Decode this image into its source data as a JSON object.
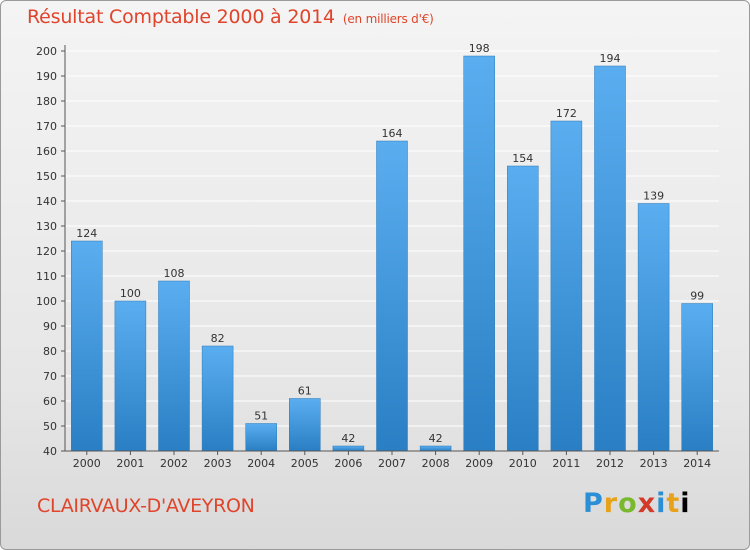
{
  "header": {
    "title": "Résultat Comptable 2000 à 2014",
    "unit": "(en milliers d'€)"
  },
  "footer": {
    "commune": "CLAIRVAUX-D'AVEYRON",
    "logo_letters": [
      "P",
      "r",
      "o",
      "x",
      "i",
      "t",
      "i"
    ]
  },
  "chart_data": {
    "type": "bar",
    "title": "Résultat Comptable 2000 à 2014",
    "subtitle": "(en milliers d'€)",
    "xlabel": "",
    "ylabel": "",
    "categories": [
      "2000",
      "2001",
      "2002",
      "2003",
      "2004",
      "2005",
      "2006",
      "2007",
      "2008",
      "2009",
      "2010",
      "2011",
      "2012",
      "2013",
      "2014"
    ],
    "values": [
      124,
      100,
      108,
      82,
      51,
      61,
      42,
      164,
      42,
      198,
      154,
      172,
      194,
      139,
      99
    ],
    "ylim": [
      40,
      200
    ],
    "yticks": [
      40,
      50,
      60,
      70,
      80,
      90,
      100,
      110,
      120,
      130,
      140,
      150,
      160,
      170,
      180,
      190,
      200
    ],
    "grid": true,
    "bar_color": "#3a96dc",
    "grid_color": "#ffffff"
  },
  "colors": {
    "title": "#e0442a",
    "axis_text": "#333333"
  }
}
